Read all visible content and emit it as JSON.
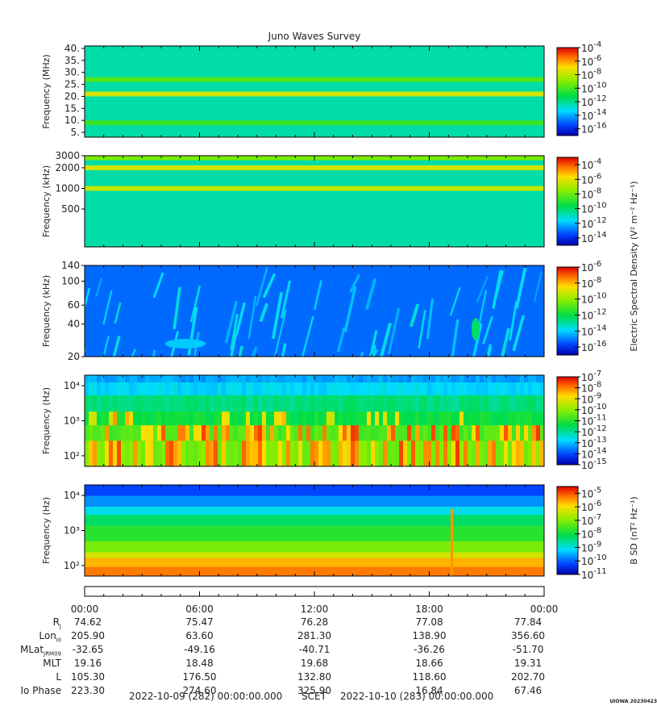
{
  "chart_data": {
    "type": "heatmap",
    "title": "Juno Waves Survey",
    "panels": [
      {
        "name": "HFR high",
        "ylabel": "Frequency (MHz)",
        "yscale": "linear",
        "ylim": [
          3,
          41
        ],
        "yticks": [
          {
            "v": 5,
            "t": "5."
          },
          {
            "v": 10,
            "t": "10."
          },
          {
            "v": 15,
            "t": "15."
          },
          {
            "v": 20,
            "t": "20."
          },
          {
            "v": 25,
            "t": "25."
          },
          {
            "v": 30,
            "t": "30."
          },
          {
            "v": 35,
            "t": "35."
          },
          {
            "v": 40,
            "t": "40."
          }
        ],
        "colorbar": {
          "exps": [
            "-4",
            "-6",
            "-8",
            "-10",
            "-12",
            "-14",
            "-16"
          ],
          "range": [
            -17,
            -4
          ],
          "label": ""
        },
        "bands": [
          {
            "f": 21,
            "level": 0.72
          },
          {
            "f": 9,
            "level": 0.52
          },
          {
            "f": 27,
            "level": 0.55
          }
        ]
      },
      {
        "name": "HFR low",
        "ylabel": "Frequency (kHz)",
        "yscale": "log",
        "ylim": [
          140,
          3000
        ],
        "yticks": [
          {
            "v": 500,
            "t": "500"
          },
          {
            "v": 1000,
            "t": "1000"
          },
          {
            "v": 2000,
            "t": "2000"
          },
          {
            "v": 3000,
            "t": "3000"
          }
        ],
        "colorbar": {
          "exps": [
            "-4",
            "-6",
            "-8",
            "-10",
            "-12",
            "-14"
          ],
          "range": [
            -15,
            -3
          ],
          "label": "Electric Spectral Density (V² m⁻² Hz⁻¹)"
        },
        "bands": [
          {
            "f": 2000,
            "level": 0.72
          },
          {
            "f": 1000,
            "level": 0.7
          },
          {
            "f": 2800,
            "level": 0.6
          }
        ]
      },
      {
        "name": "LFR",
        "ylabel": "Frequency (kHz)",
        "yscale": "log",
        "ylim": [
          20,
          140
        ],
        "yticks": [
          {
            "v": 20,
            "t": "20"
          },
          {
            "v": 40,
            "t": "40"
          },
          {
            "v": 60,
            "t": "60"
          },
          {
            "v": 100,
            "t": "100"
          },
          {
            "v": 140,
            "t": "140"
          }
        ],
        "colorbar": {
          "exps": [
            "-6",
            "-8",
            "-10",
            "-12",
            "-14",
            "-16"
          ],
          "range": [
            -17,
            -6
          ],
          "label": ""
        },
        "bands": []
      },
      {
        "name": "LFR low",
        "ylabel": "Frequency (Hz)",
        "yscale": "log",
        "ylim": [
          50,
          20000
        ],
        "yticks": [
          {
            "v": 100,
            "t": "10²"
          },
          {
            "v": 1000,
            "t": "10³"
          },
          {
            "v": 10000,
            "t": "10⁴"
          }
        ],
        "colorbar": {
          "exps": [
            "-7",
            "-8",
            "-9",
            "-10",
            "-11",
            "-12",
            "-13",
            "-14",
            "-15"
          ],
          "range": [
            -15,
            -7
          ],
          "label": ""
        },
        "bands": []
      },
      {
        "name": "Magnetic",
        "ylabel": "Frequency (Hz)",
        "yscale": "log",
        "ylim": [
          50,
          20000
        ],
        "yticks": [
          {
            "v": 100,
            "t": "10²"
          },
          {
            "v": 1000,
            "t": "10³"
          },
          {
            "v": 10000,
            "t": "10⁴"
          }
        ],
        "colorbar": {
          "exps": [
            "-5",
            "-6",
            "-7",
            "-8",
            "-9",
            "-10",
            "-11"
          ],
          "range": [
            -11,
            -4.5
          ],
          "label": "B SD (nT² Hz⁻¹)"
        },
        "bands": []
      }
    ],
    "time_axis": {
      "start": "2022-10-09 (282) 00:00:00.000",
      "end": "2022-10-10 (283) 00:00:00.000",
      "label": "SCET",
      "ticks": [
        "00:00",
        "06:00",
        "12:00",
        "18:00",
        "00:00"
      ]
    },
    "ephemeris": [
      {
        "label": "R",
        "sub": "J",
        "values": [
          "74.62",
          "75.47",
          "76.28",
          "77.08",
          "77.84"
        ]
      },
      {
        "label": "Lon",
        "sub": "III",
        "values": [
          "205.90",
          "63.60",
          "281.30",
          "138.90",
          "356.60"
        ]
      },
      {
        "label": "MLat",
        "sub": "JRM09",
        "values": [
          "-32.65",
          "-49.16",
          "-40.71",
          "-36.26",
          "-51.70"
        ]
      },
      {
        "label": "MLT",
        "sub": "",
        "values": [
          "19.16",
          "18.48",
          "19.68",
          "18.66",
          "19.31"
        ]
      },
      {
        "label": "L",
        "sub": "",
        "values": [
          "105.30",
          "176.50",
          "132.80",
          "118.60",
          "202.70"
        ]
      },
      {
        "label": "Io Phase",
        "sub": "",
        "values": [
          "223.30",
          "274.60",
          "325.90",
          "16.84",
          "67.46"
        ]
      }
    ]
  },
  "stamp": "UIOWA 20230423"
}
